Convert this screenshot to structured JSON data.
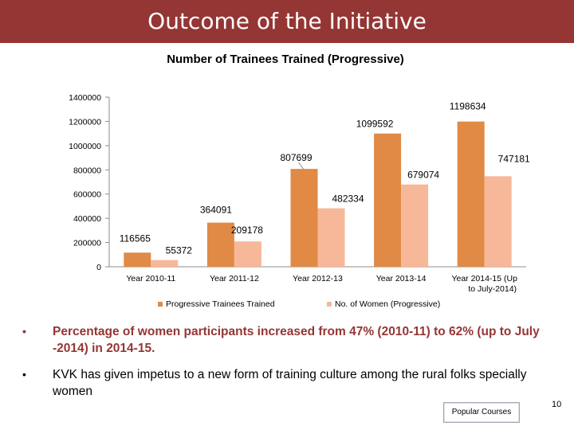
{
  "header": {
    "title": "Outcome of the Initiative"
  },
  "chart_data": {
    "type": "bar",
    "title": "Number of Trainees Trained (Progressive)",
    "categories": [
      "Year 2010-11",
      "Year 2011-12",
      "Year 2012-13",
      "Year 2013-14",
      "Year 2014-15  (Up to July-2014)"
    ],
    "category_lines": [
      [
        "Year 2010-11"
      ],
      [
        "Year 2011-12"
      ],
      [
        "Year 2012-13"
      ],
      [
        "Year 2013-14"
      ],
      [
        "Year 2014-15     (Up",
        "to July-2014)"
      ]
    ],
    "series": [
      {
        "name": "Progressive Trainees Trained",
        "color": "#e08a45",
        "values": [
          116565,
          364091,
          807699,
          1099592,
          1198634
        ]
      },
      {
        "name": "No. of Women (Progressive)",
        "color": "#f7b799",
        "values": [
          55372,
          209178,
          482334,
          679074,
          747181
        ]
      }
    ],
    "ylim": [
      0,
      1400000
    ],
    "yticks": [
      0,
      200000,
      400000,
      600000,
      800000,
      1000000,
      1200000,
      1400000
    ],
    "legend_position": "bottom",
    "grid": false
  },
  "bullets": [
    "Percentage of women  participants increased from 47% (2010-11) to 62%  (up to July -2014) in 2014-15.",
    "KVK has given impetus to a new form of training culture among the rural folks specially women"
  ],
  "footer": {
    "button_label": "Popular Courses",
    "page_number": "10"
  }
}
